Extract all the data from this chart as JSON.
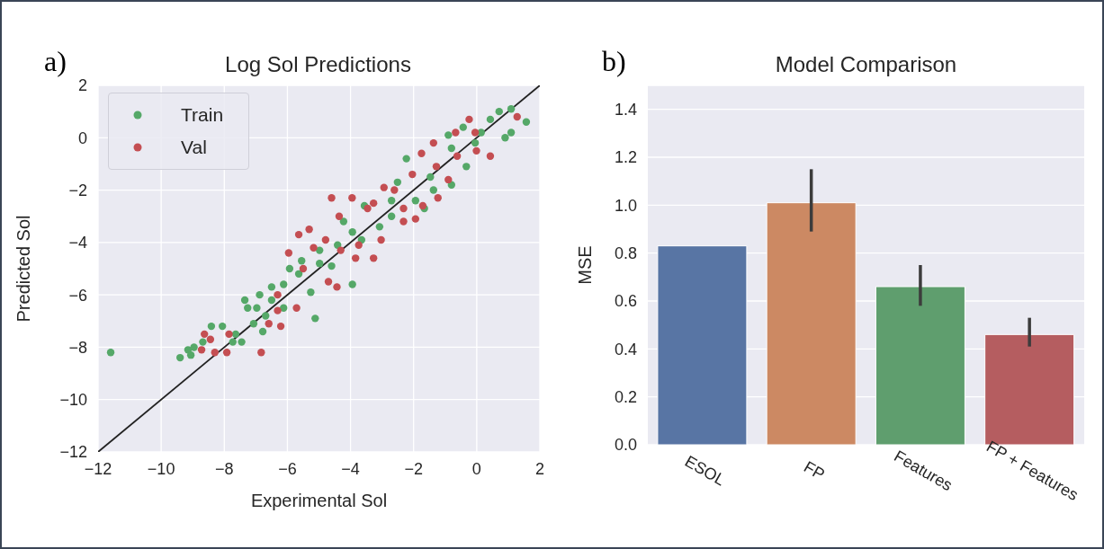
{
  "chart_data": [
    {
      "type": "scatter",
      "title": "Log Sol Predictions",
      "xlabel": "Experimental Sol",
      "ylabel": "Predicted Sol",
      "annotations": [
        "a)"
      ],
      "xlim": [
        -12,
        2
      ],
      "ylim": [
        -12,
        2
      ],
      "xticks": [
        -12,
        -10,
        -8,
        -6,
        -4,
        -2,
        0,
        2
      ],
      "yticks": [
        -12,
        -10,
        -8,
        -6,
        -4,
        -2,
        0,
        2
      ],
      "grid": true,
      "legend": "top left",
      "marker": "circle",
      "series": [
        {
          "name": "Train",
          "color": "#55a868",
          "x": [
            -11.6,
            -9.4,
            -9.15,
            -8.96,
            -8.68,
            -8.41,
            -8.06,
            -7.73,
            -7.45,
            -7.35,
            -7.26,
            -6.97,
            -6.88,
            -6.69,
            -6.78,
            -6.5,
            -6.12,
            -5.93,
            -5.55,
            -5.26,
            -5.12,
            -4.98,
            -4.6,
            -4.22,
            -3.94,
            -3.65,
            -3.56,
            -3.08,
            -2.7,
            -2.51,
            -2.23,
            -1.94,
            -1.66,
            -1.37,
            -0.8,
            -0.8,
            -0.9,
            -0.43,
            -0.05,
            0.14,
            0.43,
            0.71,
            1.09,
            1.57,
            0.9,
            1.09,
            -0.33,
            -1.47,
            -2.7,
            -3.94,
            -4.41,
            -4.98,
            -5.64,
            -6.12,
            -6.5,
            -7.07,
            -7.64,
            -9.06
          ],
          "values": [
            -8.2,
            -8.4,
            -8.1,
            -8.0,
            -7.8,
            -7.2,
            -7.2,
            -7.8,
            -7.8,
            -6.2,
            -6.5,
            -6.5,
            -6.0,
            -6.8,
            -7.4,
            -6.2,
            -6.5,
            -5.0,
            -4.7,
            -5.9,
            -6.9,
            -4.8,
            -4.9,
            -3.2,
            -5.6,
            -3.9,
            -2.6,
            -3.4,
            -3.0,
            -1.7,
            -0.8,
            -2.4,
            -2.7,
            -2.0,
            -1.8,
            -0.4,
            0.1,
            0.4,
            -0.2,
            0.2,
            0.7,
            1.0,
            1.1,
            0.6,
            0.0,
            0.2,
            -1.1,
            -1.5,
            -2.4,
            -3.6,
            -4.1,
            -4.3,
            -5.2,
            -5.6,
            -5.7,
            -7.1,
            -7.5,
            -8.3
          ]
        },
        {
          "name": "Val",
          "color": "#c44e52",
          "x": [
            -6.83,
            -7.92,
            -8.3,
            -8.63,
            -8.44,
            -7.85,
            -8.72,
            -6.59,
            -6.21,
            -6.31,
            -6.31,
            -5.71,
            -4.43,
            -4.7,
            -5.5,
            -5.96,
            -5.64,
            -5.31,
            -5.17,
            -4.6,
            -3.95,
            -4.36,
            -4.79,
            -4.31,
            -3.74,
            -3.27,
            -3.03,
            -3.46,
            -2.94,
            -2.61,
            -2.32,
            -1.94,
            -1.75,
            -1.37,
            -2.04,
            -1.28,
            -0.9,
            -1.23,
            -1.71,
            -0.67,
            -0.24,
            -0.05,
            -0.01,
            0.43,
            1.28,
            -0.62,
            -2.32,
            -3.27,
            -3.84
          ],
          "values": [
            -8.2,
            -8.2,
            -8.2,
            -7.5,
            -7.7,
            -7.5,
            -8.1,
            -7.1,
            -7.2,
            -6.6,
            -6.0,
            -6.5,
            -5.7,
            -5.5,
            -5.0,
            -4.4,
            -3.7,
            -3.5,
            -4.2,
            -2.3,
            -2.3,
            -3.0,
            -3.9,
            -4.3,
            -4.1,
            -4.6,
            -3.9,
            -2.7,
            -1.9,
            -2.0,
            -2.7,
            -3.1,
            -0.6,
            -0.2,
            -1.4,
            -1.1,
            -1.6,
            -2.3,
            -2.6,
            0.2,
            0.7,
            0.2,
            -0.5,
            -0.7,
            0.8,
            -0.7,
            -3.2,
            -2.5,
            -4.6
          ]
        },
        {
          "type": "line",
          "color": "#222222",
          "marker": "none",
          "x": [
            -12,
            2
          ],
          "values": [
            -12,
            2
          ]
        }
      ]
    },
    {
      "type": "bar",
      "title": "Model Comparison",
      "ylabel": "MSE",
      "annotations": [
        "b)"
      ],
      "categories": [
        "ESOL",
        "FP",
        "Features",
        "FP + Features"
      ],
      "values": [
        0.83,
        1.01,
        0.66,
        0.46
      ],
      "colors": [
        "#5875a4",
        "#cc8963",
        "#5f9e6e",
        "#b55d60"
      ],
      "errors": [
        null,
        [
          0.89,
          1.15
        ],
        [
          0.58,
          0.75
        ],
        [
          0.41,
          0.53
        ]
      ],
      "ylim": [
        0,
        1.5
      ],
      "yticks": [
        {
          "value": 0,
          "label": "0.0"
        },
        0.2,
        0.4,
        0.6,
        0.8,
        {
          "value": 1,
          "label": "1.0"
        },
        1.2,
        1.4
      ],
      "grid": "y"
    }
  ]
}
